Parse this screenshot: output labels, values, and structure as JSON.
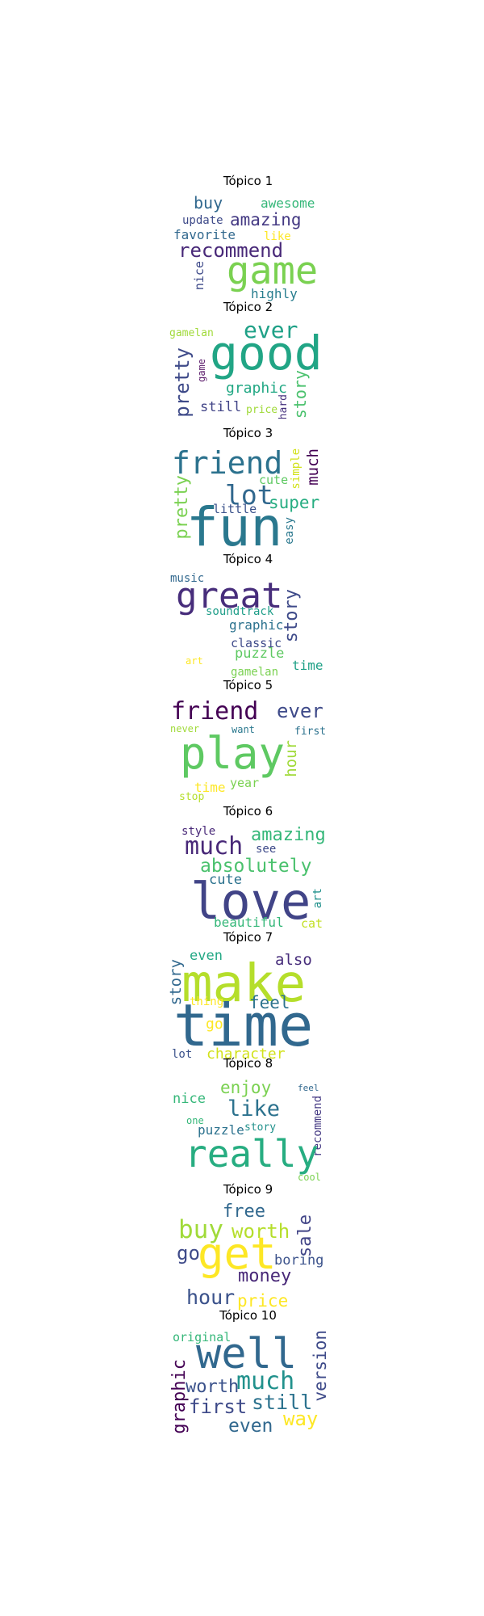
{
  "topics": [
    {
      "title": "Tópico 1",
      "words": [
        {
          "text": "awesome",
          "color": "#35b779"
        },
        {
          "text": "buy",
          "color": "#31688e"
        },
        {
          "text": "amazing",
          "color": "#443983"
        },
        {
          "text": "update",
          "color": "#3e4a89"
        },
        {
          "text": "favorite",
          "color": "#31688e"
        },
        {
          "text": "like",
          "color": "#fde725"
        },
        {
          "text": "recommend",
          "color": "#482878"
        },
        {
          "text": "game",
          "color": "#7ad151"
        },
        {
          "text": "nice",
          "color": "#3e4a89"
        },
        {
          "text": "highly",
          "color": "#287d8e"
        }
      ]
    },
    {
      "title": "Tópico 2",
      "words": [
        {
          "text": "gamelan",
          "color": "#a0da39"
        },
        {
          "text": "ever",
          "color": "#1fa187"
        },
        {
          "text": "good",
          "color": "#21a585"
        },
        {
          "text": "pretty",
          "color": "#3e4a89"
        },
        {
          "text": "game",
          "color": "#5b1b6b"
        },
        {
          "text": "graphic",
          "color": "#22a884"
        },
        {
          "text": "story",
          "color": "#4ac16d"
        },
        {
          "text": "still",
          "color": "#414487"
        },
        {
          "text": "price",
          "color": "#a0da39"
        },
        {
          "text": "hard",
          "color": "#46327e"
        }
      ]
    },
    {
      "title": "Tópico 3",
      "words": [
        {
          "text": "friend",
          "color": "#2c728e"
        },
        {
          "text": "simple",
          "color": "#d2e21b"
        },
        {
          "text": "much",
          "color": "#440154"
        },
        {
          "text": "cute",
          "color": "#5ec962"
        },
        {
          "text": "lot",
          "color": "#31688e"
        },
        {
          "text": "super",
          "color": "#26ad81"
        },
        {
          "text": "pretty",
          "color": "#7ad151"
        },
        {
          "text": "little",
          "color": "#3b528b"
        },
        {
          "text": "fun",
          "color": "#2a788e"
        },
        {
          "text": "easy",
          "color": "#2a788e"
        }
      ]
    },
    {
      "title": "Tópico 4",
      "words": [
        {
          "text": "music",
          "color": "#31688e"
        },
        {
          "text": "great",
          "color": "#472d7b"
        },
        {
          "text": "story",
          "color": "#3e4a89"
        },
        {
          "text": "soundtrack",
          "color": "#1f9e89"
        },
        {
          "text": "graphic",
          "color": "#2c728e"
        },
        {
          "text": "classic",
          "color": "#3e4a89"
        },
        {
          "text": "art",
          "color": "#fde725"
        },
        {
          "text": "puzzle",
          "color": "#5ec962"
        },
        {
          "text": "time",
          "color": "#1fa187"
        },
        {
          "text": "gamelan",
          "color": "#7ad151"
        }
      ]
    },
    {
      "title": "Tópico 5",
      "words": [
        {
          "text": "friend",
          "color": "#440154"
        },
        {
          "text": "ever",
          "color": "#3e4a89"
        },
        {
          "text": "never",
          "color": "#a0da39"
        },
        {
          "text": "want",
          "color": "#2a788e"
        },
        {
          "text": "first",
          "color": "#2c728e"
        },
        {
          "text": "play",
          "color": "#5ec962"
        },
        {
          "text": "hour",
          "color": "#a0da39"
        },
        {
          "text": "year",
          "color": "#7ad151"
        },
        {
          "text": "time",
          "color": "#fde725"
        },
        {
          "text": "stop",
          "color": "#b5de2b"
        }
      ]
    },
    {
      "title": "Tópico 6",
      "words": [
        {
          "text": "style",
          "color": "#482878"
        },
        {
          "text": "amazing",
          "color": "#35b779"
        },
        {
          "text": "much",
          "color": "#482878"
        },
        {
          "text": "see",
          "color": "#3e4a89"
        },
        {
          "text": "absolutely",
          "color": "#4ac16d"
        },
        {
          "text": "cute",
          "color": "#2c728e"
        },
        {
          "text": "love",
          "color": "#414487"
        },
        {
          "text": "art",
          "color": "#21918c"
        },
        {
          "text": "beautiful",
          "color": "#35b779"
        },
        {
          "text": "cat",
          "color": "#c2df23"
        }
      ]
    },
    {
      "title": "Tópico 7",
      "words": [
        {
          "text": "even",
          "color": "#22a884"
        },
        {
          "text": "also",
          "color": "#472d7b"
        },
        {
          "text": "story",
          "color": "#31688e"
        },
        {
          "text": "make",
          "color": "#b5de2b"
        },
        {
          "text": "thing",
          "color": "#fde725"
        },
        {
          "text": "feel",
          "color": "#2c728e"
        },
        {
          "text": "time",
          "color": "#31688e"
        },
        {
          "text": "go",
          "color": "#fde725"
        },
        {
          "text": "lot",
          "color": "#3b528b"
        },
        {
          "text": "character",
          "color": "#d2e21b"
        }
      ]
    },
    {
      "title": "Tópico 8",
      "words": [
        {
          "text": "enjoy",
          "color": "#7ad151"
        },
        {
          "text": "feel",
          "color": "#31688e"
        },
        {
          "text": "nice",
          "color": "#35b779"
        },
        {
          "text": "like",
          "color": "#2c728e"
        },
        {
          "text": "recommend",
          "color": "#443983"
        },
        {
          "text": "one",
          "color": "#35b779"
        },
        {
          "text": "puzzle",
          "color": "#2c728e"
        },
        {
          "text": "story",
          "color": "#21918c"
        },
        {
          "text": "really",
          "color": "#27ad81"
        },
        {
          "text": "cool",
          "color": "#7ad151"
        }
      ]
    },
    {
      "title": "Tópico 9",
      "words": [
        {
          "text": "free",
          "color": "#31688e"
        },
        {
          "text": "buy",
          "color": "#a0da39"
        },
        {
          "text": "worth",
          "color": "#b5de2b"
        },
        {
          "text": "sale",
          "color": "#414487"
        },
        {
          "text": "go",
          "color": "#3e4a89"
        },
        {
          "text": "get",
          "color": "#fde725"
        },
        {
          "text": "boring",
          "color": "#3b528b"
        },
        {
          "text": "money",
          "color": "#482878"
        },
        {
          "text": "hour",
          "color": "#3b528b"
        },
        {
          "text": "price",
          "color": "#fde725"
        }
      ]
    },
    {
      "title": "Tópico 10",
      "words": [
        {
          "text": "original",
          "color": "#35b779"
        },
        {
          "text": "well",
          "color": "#31688e"
        },
        {
          "text": "version",
          "color": "#3e4a89"
        },
        {
          "text": "graphic",
          "color": "#440154"
        },
        {
          "text": "worth",
          "color": "#3b528b"
        },
        {
          "text": "much",
          "color": "#21918c"
        },
        {
          "text": "first",
          "color": "#3e4a89"
        },
        {
          "text": "still",
          "color": "#2c728e"
        },
        {
          "text": "way",
          "color": "#fde725"
        },
        {
          "text": "even",
          "color": "#31688e"
        }
      ]
    }
  ]
}
